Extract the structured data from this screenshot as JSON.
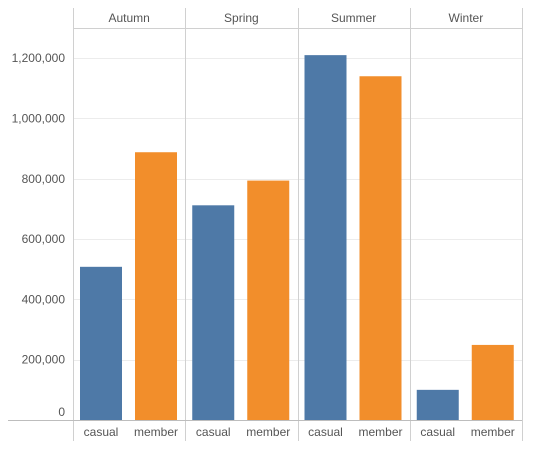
{
  "chart_data": {
    "type": "bar",
    "title": "",
    "xlabel": "",
    "ylabel": "",
    "ylim": [
      0,
      1300000
    ],
    "yticks": [
      0,
      200000,
      400000,
      600000,
      800000,
      1000000,
      1200000
    ],
    "ytick_labels": [
      "0",
      "200,000",
      "400,000",
      "600,000",
      "800,000",
      "1,000,000",
      "1,200,000"
    ],
    "panels": [
      "Autumn",
      "Spring",
      "Summer",
      "Winter"
    ],
    "categories": [
      "casual",
      "member"
    ],
    "colors": {
      "casual": "#4e79a7",
      "member": "#f28e2b"
    },
    "grid": true,
    "legend": "none",
    "values": {
      "Autumn": {
        "casual": 508000,
        "member": 888000
      },
      "Spring": {
        "casual": 712000,
        "member": 794000
      },
      "Summer": {
        "casual": 1210000,
        "member": 1140000
      },
      "Winter": {
        "casual": 100000,
        "member": 249000
      }
    }
  }
}
